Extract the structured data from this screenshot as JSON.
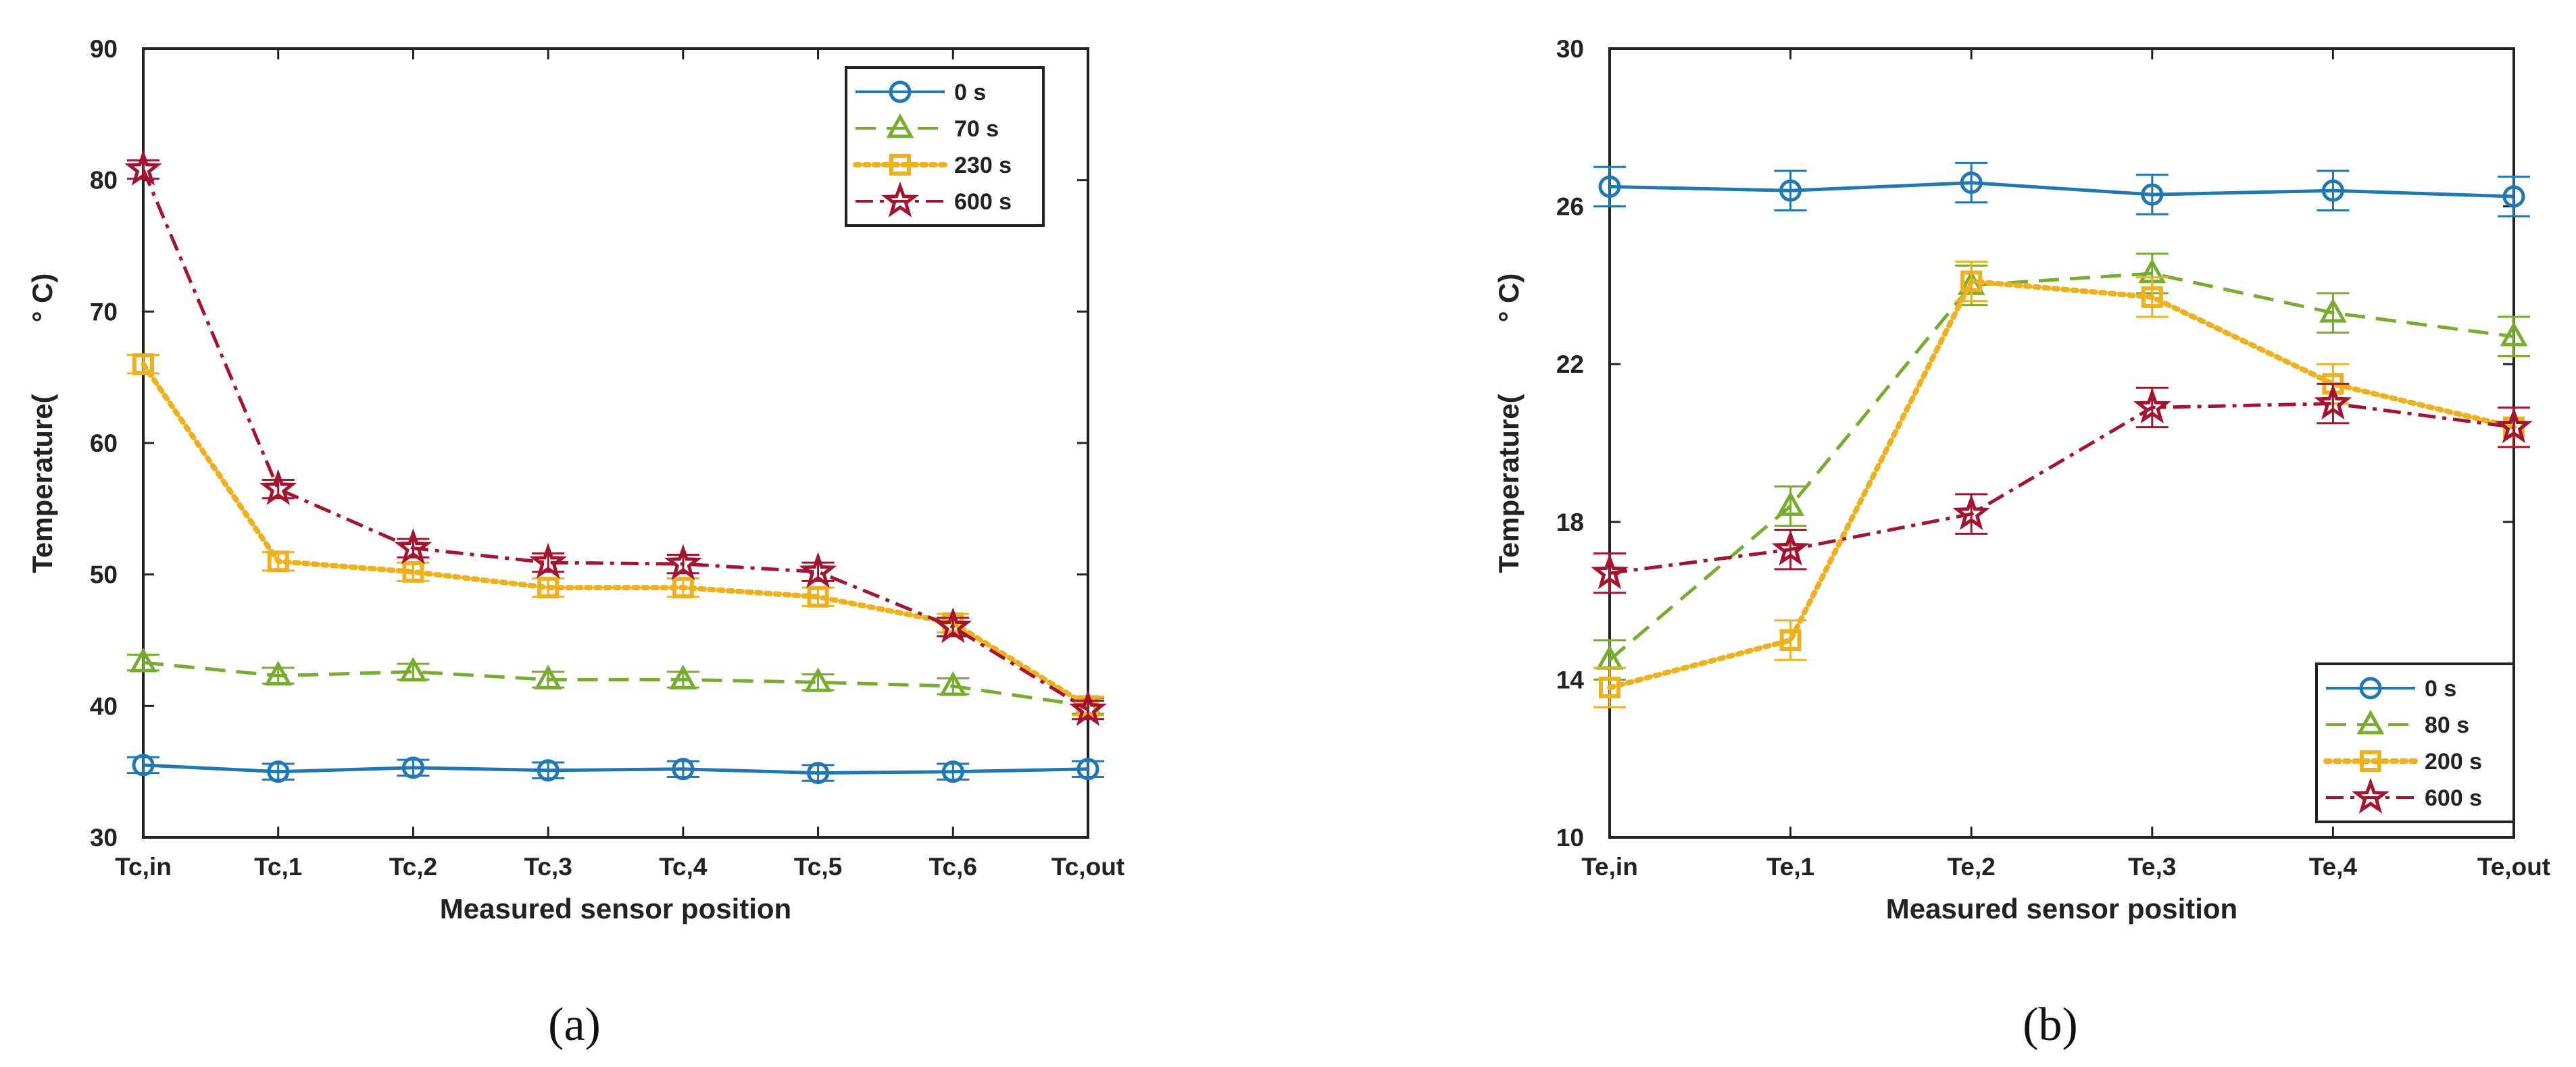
{
  "chart_data": [
    {
      "type": "line",
      "panel_label": "(a)",
      "xlabel": "Measured sensor position",
      "ylabel": "Temperature(",
      "ylabel_unit": "° C)",
      "categories": [
        "Tc,in",
        "Tc,1",
        "Tc,2",
        "Tc,3",
        "Tc,4",
        "Tc,5",
        "Tc,6",
        "Tc,out"
      ],
      "ylim": [
        30,
        90
      ],
      "yticks": [
        30,
        40,
        50,
        60,
        70,
        80,
        90
      ],
      "legend_position": "top-right",
      "series": [
        {
          "name": "0 s",
          "color": "#1f77b4",
          "marker": "circle",
          "dash": "solid",
          "values": [
            35.5,
            35.0,
            35.3,
            35.1,
            35.2,
            34.9,
            35.0,
            35.2
          ],
          "error": 0.6
        },
        {
          "name": "70 s",
          "color": "#77ac30",
          "marker": "triangle",
          "dash": "dashed",
          "values": [
            43.3,
            42.3,
            42.6,
            42.0,
            42.0,
            41.8,
            41.5,
            40.0
          ],
          "error": 0.6
        },
        {
          "name": "230 s",
          "color": "#edb120",
          "marker": "square",
          "dash": "dotted",
          "values": [
            66.0,
            51.0,
            50.2,
            49.0,
            49.0,
            48.3,
            46.3,
            40.0
          ],
          "error": 0.7
        },
        {
          "name": "600 s",
          "color": "#a2142f",
          "marker": "star",
          "dash": "dashdot",
          "values": [
            80.8,
            56.5,
            52.0,
            50.9,
            50.8,
            50.2,
            46.0,
            39.7
          ],
          "error": 0.7
        }
      ]
    },
    {
      "type": "line",
      "panel_label": "(b)",
      "xlabel": "Measured sensor position",
      "ylabel": "Temperature(",
      "ylabel_unit": "° C)",
      "categories": [
        "Te,in",
        "Te,1",
        "Te,2",
        "Te,3",
        "Te,4",
        "Te,out"
      ],
      "ylim": [
        10,
        30
      ],
      "yticks": [
        10,
        14,
        18,
        22,
        26,
        30
      ],
      "legend_position": "bottom-right",
      "series": [
        {
          "name": "0 s",
          "color": "#1f77b4",
          "marker": "circle",
          "dash": "solid",
          "values": [
            26.5,
            26.4,
            26.6,
            26.3,
            26.4,
            26.25
          ],
          "error": 0.5
        },
        {
          "name": "80 s",
          "color": "#77ac30",
          "marker": "triangle",
          "dash": "dashed",
          "values": [
            14.5,
            18.4,
            24.0,
            24.3,
            23.3,
            22.7
          ],
          "error": 0.5
        },
        {
          "name": "200 s",
          "color": "#edb120",
          "marker": "square",
          "dash": "dotted",
          "values": [
            13.8,
            15.0,
            24.1,
            23.7,
            21.5,
            20.4
          ],
          "error": 0.5
        },
        {
          "name": "600 s",
          "color": "#a2142f",
          "marker": "star",
          "dash": "dashdot",
          "values": [
            16.7,
            17.3,
            18.2,
            20.9,
            21.0,
            20.4
          ],
          "error": 0.5
        }
      ]
    }
  ]
}
